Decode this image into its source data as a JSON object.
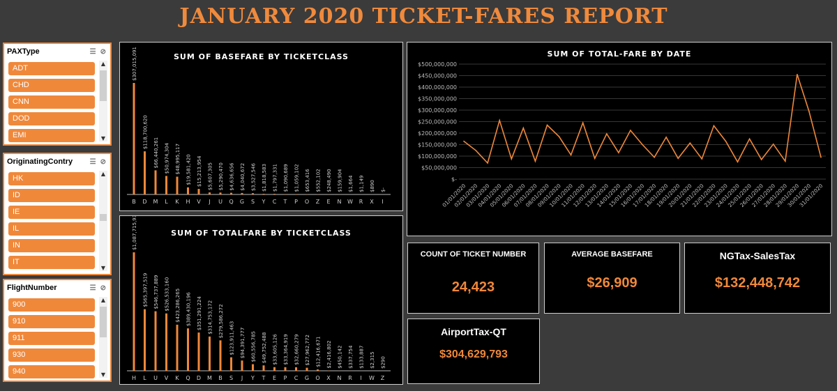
{
  "report_title": "JANUARY 2020 TICKET-FARES REPORT",
  "slicers": [
    {
      "name": "PAXType",
      "items": [
        "ADT",
        "CHD",
        "CNN",
        "DOD",
        "EMI"
      ]
    },
    {
      "name": "OriginatingContry",
      "items": [
        "HK",
        "ID",
        "IE",
        "IL",
        "IN",
        "IT"
      ]
    },
    {
      "name": "FlightNumber",
      "items": [
        "900",
        "910",
        "911",
        "930",
        "940"
      ]
    }
  ],
  "kpis": {
    "count_label": "COUNT OF TICKET NUMBER",
    "count_value": "24,423",
    "avg_label": "AVERAGE BASEFARE",
    "avg_value": "$26,909",
    "ngtax_label": "NGTax-SalesTax",
    "ngtax_value": "$132,448,742",
    "airport_label": "AirportTax-QT",
    "airport_value": "$304,629,793"
  },
  "colors": {
    "accent": "#f0883a",
    "background": "#3b3b3b",
    "panel": "#000000"
  },
  "chart_data": [
    {
      "type": "bar",
      "title": "SUM OF BASEFARE BY TICKETCLASS",
      "categories": [
        "B",
        "D",
        "M",
        "L",
        "K",
        "H",
        "V",
        "J",
        "U",
        "Q",
        "G",
        "S",
        "Y",
        "C",
        "T",
        "P",
        "O",
        "Z",
        "E",
        "N",
        "W",
        "R",
        "X",
        "I"
      ],
      "values": [
        307015091,
        118700620,
        66440261,
        50974304,
        48995117,
        19581420,
        15213954,
        5607305,
        5290470,
        4636656,
        4040672,
        3527546,
        1818583,
        1797331,
        1090689,
        1059102,
        653416,
        552102,
        248490,
        159904,
        1664,
        1149,
        890,
        0
      ],
      "labels": [
        "$307,015,091",
        "$118,700,620",
        "$66,440,261",
        "$50,974,304",
        "$48,995,117",
        "$19,581,420",
        "$15,213,954",
        "$5,607,305",
        "$5,290,470",
        "$4,636,656",
        "$4,040,672",
        "$3,527,546",
        "$1,818,583",
        "$1,797,331",
        "$1,090,689",
        "$1,059,102",
        "$653,416",
        "$552,102",
        "$248,490",
        "$159,904",
        "$1,664",
        "$1,149",
        "$890",
        "$-"
      ]
    },
    {
      "type": "bar",
      "title": "SUM OF TOTALFARE BY TICKETCLASS",
      "categories": [
        "H",
        "L",
        "U",
        "V",
        "K",
        "Q",
        "D",
        "M",
        "B",
        "S",
        "J",
        "Y",
        "T",
        "E",
        "P",
        "C",
        "G",
        "O",
        "X",
        "N",
        "R",
        "I",
        "W",
        "Z"
      ],
      "values": [
        1087715932,
        565397519,
        546737889,
        526533160,
        423286265,
        389430196,
        351291224,
        314753172,
        279586272,
        123911463,
        94391777,
        60556785,
        49752488,
        33605126,
        33364919,
        32660279,
        27962772,
        12416671,
        2416802,
        450142,
        337754,
        133887,
        2315,
        290
      ],
      "labels": [
        "$1,087,715,932",
        "$565,397,519",
        "$546,737,889",
        "$526,533,160",
        "$423,286,265",
        "$389,430,196",
        "$351,291,224",
        "$314,753,172",
        "$279,586,272",
        "$123,911,463",
        "$94,391,777",
        "$60,556,785",
        "$49,752,488",
        "$33,605,126",
        "$33,364,919",
        "$32,660,279",
        "$27,962,772",
        "$12,416,671",
        "$2,416,802",
        "$450,142",
        "$337,754",
        "$133,887",
        "$2,315",
        "$290"
      ]
    },
    {
      "type": "line",
      "title": "SUM OF TOTAL-FARE BY DATE",
      "x": [
        "01/01/2020",
        "02/01/2020",
        "03/01/2020",
        "04/01/2020",
        "05/01/2020",
        "06/01/2020",
        "07/01/2020",
        "08/01/2020",
        "09/01/2020",
        "10/01/2020",
        "11/01/2020",
        "12/01/2020",
        "13/01/2020",
        "14/01/2020",
        "15/01/2020",
        "16/01/2020",
        "17/01/2020",
        "18/01/2020",
        "19/01/2020",
        "20/01/2020",
        "21/01/2020",
        "22/01/2020",
        "23/01/2020",
        "24/01/2020",
        "25/01/2020",
        "26/01/2020",
        "27/01/2020",
        "28/01/2020",
        "29/01/2020",
        "30/01/2020",
        "31/01/2020"
      ],
      "values": [
        165000000,
        125000000,
        70000000,
        255000000,
        88000000,
        222000000,
        78000000,
        235000000,
        185000000,
        105000000,
        245000000,
        90000000,
        197000000,
        115000000,
        212000000,
        150000000,
        95000000,
        182000000,
        90000000,
        157000000,
        88000000,
        232000000,
        165000000,
        75000000,
        175000000,
        85000000,
        152000000,
        78000000,
        455000000,
        295000000,
        95000000
      ],
      "yticks": [
        "$-",
        "$50,000,000",
        "$100,000,000",
        "$150,000,000",
        "$200,000,000",
        "$250,000,000",
        "$300,000,000",
        "$350,000,000",
        "$400,000,000",
        "$450,000,000",
        "$500,000,000"
      ],
      "ylim": [
        0,
        500000000
      ]
    }
  ]
}
